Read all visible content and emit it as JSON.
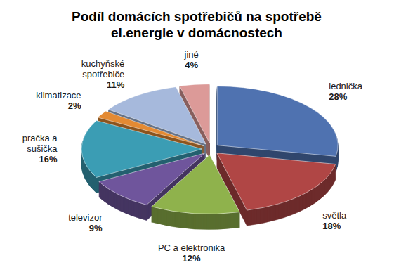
{
  "chart_data": {
    "type": "pie",
    "title": "Podíl domácích spotřebičů na spotřebě el.energie v domácnostech",
    "categories": [
      "lednička",
      "světla",
      "PC a elektronika",
      "televizor",
      "pračka a sušička",
      "klimatizace",
      "kuchyňské spotřebiče",
      "jiné"
    ],
    "values": [
      28,
      18,
      12,
      9,
      16,
      2,
      11,
      4
    ],
    "value_labels": [
      "28%",
      "18%",
      "12%",
      "9%",
      "16%",
      "2%",
      "11%",
      "4%"
    ],
    "colors": [
      "#4f72b0",
      "#b04645",
      "#8fb24c",
      "#6f559c",
      "#3b9db4",
      "#e38a33",
      "#a6b9dc",
      "#dc9a98"
    ],
    "data_labels": true
  }
}
